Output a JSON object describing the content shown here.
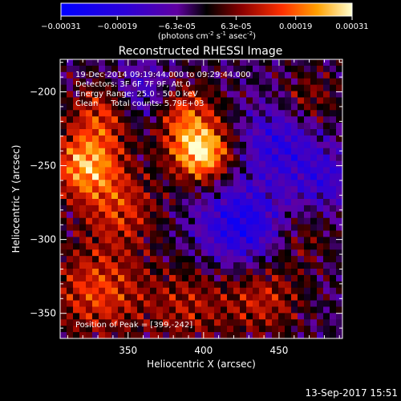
{
  "footer": {
    "date": "13-Sep-2017 15:51"
  },
  "chart_data": {
    "type": "heatmap",
    "title": "Reconstructed RHESSI Image",
    "xlabel": "Heliocentric X (arcsec)",
    "ylabel": "Heliocentric Y (arcsec)",
    "xlim": [
      305,
      492
    ],
    "ylim": [
      -367,
      -178
    ],
    "x_ticks": [
      350,
      400,
      450
    ],
    "y_ticks": [
      -200,
      -250,
      -300,
      -350
    ],
    "annotations": [
      "19-Dec-2014 09:19:44.000 to 09:29:44.000",
      "Detectors: 3F 6F 7F 9F, Att 0",
      "Energy Range: 25.0 - 50.0 keV",
      "Clean     Total counts: 5.79E+03"
    ],
    "peak_label": "Position of Peak = [399,-242]",
    "peak": [
      399,
      -242
    ],
    "colorbar": {
      "range": [
        -0.00031,
        0.00031
      ],
      "tick_labels": [
        "-0.00031",
        "-0.00019",
        "-6.3e-05",
        "6.3e-05",
        "0.00019",
        "0.00031"
      ],
      "unit_label": "(photons cm-2 s-1 asec-2)"
    },
    "intensity_sources": [
      {
        "x": 399,
        "y": -242,
        "amp": 0.00031,
        "sigma": 14
      },
      {
        "x": 322,
        "y": -250,
        "amp": 0.00026,
        "sigma": 16
      },
      {
        "x": 335,
        "y": -215,
        "amp": 0.00018,
        "sigma": 16
      },
      {
        "x": 385,
        "y": -215,
        "amp": 0.0002,
        "sigma": 16
      },
      {
        "x": 345,
        "y": -280,
        "amp": 0.00015,
        "sigma": 18
      },
      {
        "x": 330,
        "y": -335,
        "amp": 0.00018,
        "sigma": 22
      },
      {
        "x": 390,
        "y": -345,
        "amp": 0.00012,
        "sigma": 20
      },
      {
        "x": 440,
        "y": -340,
        "amp": 0.00014,
        "sigma": 18
      },
      {
        "x": 470,
        "y": -205,
        "amp": 0.0001,
        "sigma": 14
      },
      {
        "x": 465,
        "y": -300,
        "amp": 8e-05,
        "sigma": 14
      },
      {
        "x": 360,
        "y": -205,
        "amp": -0.00016,
        "sigma": 16
      },
      {
        "x": 425,
        "y": -290,
        "amp": -0.0002,
        "sigma": 20
      },
      {
        "x": 450,
        "y": -235,
        "amp": -0.00015,
        "sigma": 18
      },
      {
        "x": 480,
        "y": -260,
        "amp": -0.00012,
        "sigma": 14
      }
    ]
  }
}
